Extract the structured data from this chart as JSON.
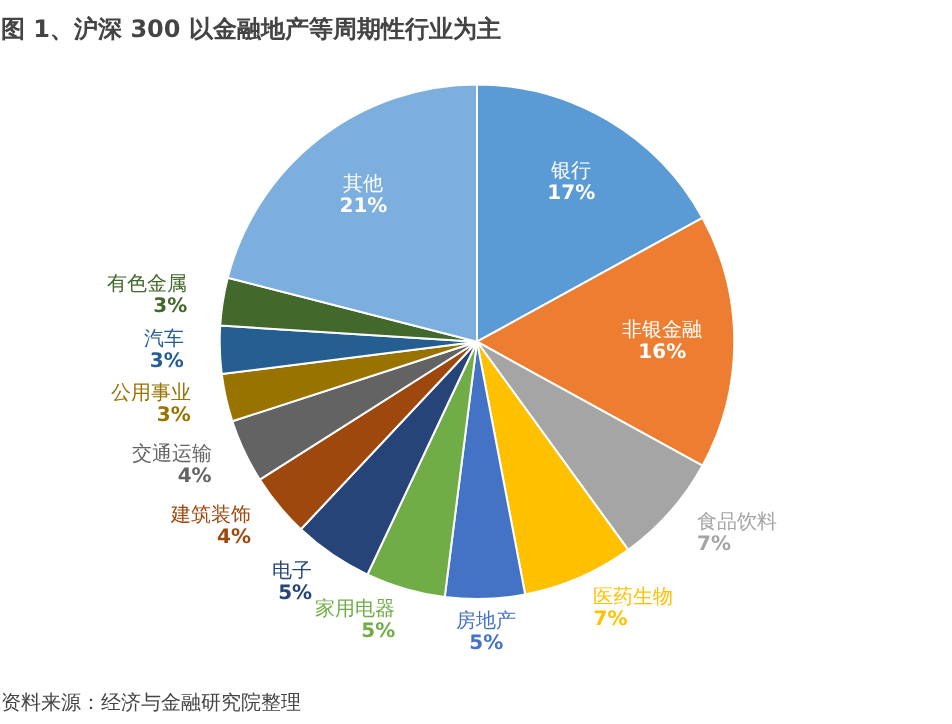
{
  "chart_data": {
    "type": "pie",
    "title": "图 1、沪深 300 以金融地产等周期性行业为主",
    "categories": [
      "银行",
      "非银金融",
      "食品饮料",
      "医药生物",
      "房地产",
      "家用电器",
      "电子",
      "建筑装饰",
      "交通运输",
      "公用事业",
      "汽车",
      "有色金属",
      "其他"
    ],
    "values": [
      17,
      16,
      7,
      7,
      5,
      5,
      5,
      4,
      4,
      3,
      3,
      3,
      21
    ],
    "value_labels": [
      "17%",
      "16%",
      "7%",
      "7%",
      "5%",
      "5%",
      "5%",
      "4%",
      "4%",
      "3%",
      "3%",
      "3%",
      "21%"
    ],
    "colors": [
      "#5b9bd5",
      "#ed7d31",
      "#a5a5a5",
      "#ffc000",
      "#4472c4",
      "#70ad47",
      "#264478",
      "#9e480e",
      "#636363",
      "#997300",
      "#255e91",
      "#43682b",
      "#7cafdd"
    ],
    "annotations": [
      "资料来源：经济与金融研究院整理"
    ]
  }
}
